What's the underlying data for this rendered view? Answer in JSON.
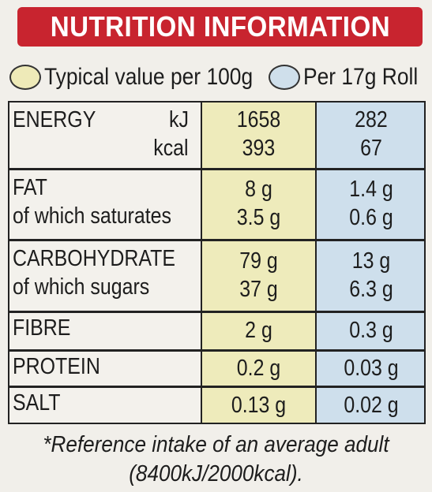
{
  "title": "NUTRITION INFORMATION",
  "legend": {
    "per_100g": "Typical value per 100g",
    "per_portion": "Per 17g Roll"
  },
  "rows": [
    {
      "label": "ENERGY",
      "unit": "kJ",
      "per_100g": "1658",
      "per_portion": "282"
    },
    {
      "label": "",
      "unit": "kcal",
      "per_100g": "393",
      "per_portion": "67"
    },
    {
      "label": "FAT",
      "per_100g": "8 g",
      "per_portion": "1.4 g"
    },
    {
      "label": "of which saturates",
      "per_100g": "3.5 g",
      "per_portion": "0.6 g"
    },
    {
      "label": "CARBOHYDRATE",
      "per_100g": "79 g",
      "per_portion": "13 g"
    },
    {
      "label": "of which sugars",
      "per_100g": "37 g",
      "per_portion": "6.3 g"
    },
    {
      "label": "FIBRE",
      "per_100g": "2 g",
      "per_portion": "0.3 g"
    },
    {
      "label": "PROTEIN",
      "per_100g": "0.2 g",
      "per_portion": "0.03 g"
    },
    {
      "label": "SALT",
      "per_100g": "0.13 g",
      "per_portion": "0.02 g"
    }
  ],
  "footnote": {
    "line1": "*Reference intake of an average adult",
    "line2": "(8400kJ/2000kcal)."
  },
  "colors": {
    "header_red": "#c8242f",
    "per_100g_yellow": "#eeebbb",
    "per_portion_blue": "#cedfec"
  }
}
